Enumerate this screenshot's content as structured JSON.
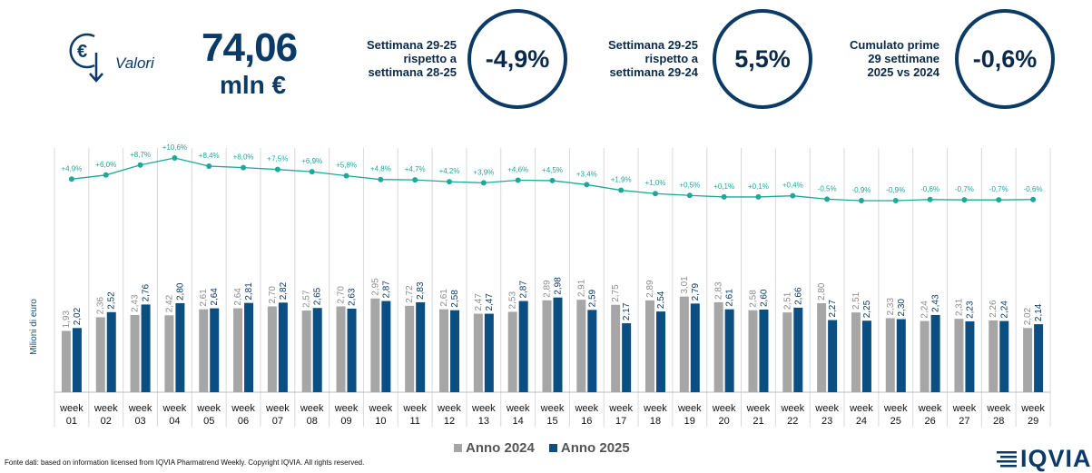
{
  "header": {
    "valori_label": "Valori",
    "total_value": "74,06",
    "total_unit": "mln €",
    "kpis": [
      {
        "label_lines": [
          "Settimana 29-25",
          "rispetto a",
          "settimana 28-25"
        ],
        "value": "-4,9%"
      },
      {
        "label_lines": [
          "Settimana 29-25",
          "rispetto a",
          "settimana 29-24"
        ],
        "value": "5,5%"
      },
      {
        "label_lines": [
          "Cumulato prime",
          "29 settimane",
          "2025 vs 2024"
        ],
        "value": "-0,6%"
      }
    ]
  },
  "colors": {
    "series_2024": "#a6a6a6",
    "series_2025": "#0b4f82",
    "growth_line": "#1aa99a",
    "accent_dark": "#0b3a66"
  },
  "chart_data": {
    "type": "bar",
    "ylabel": "Milioni di euro",
    "categories": [
      "week 01",
      "week 02",
      "week 03",
      "week 04",
      "week 05",
      "week 06",
      "week 07",
      "week 08",
      "week 09",
      "week 10",
      "week 11",
      "week 12",
      "week 13",
      "week 14",
      "week 15",
      "week 16",
      "week 17",
      "week 18",
      "week 19",
      "week 20",
      "week 21",
      "week 22",
      "week 23",
      "week 24",
      "week 25",
      "week 26",
      "week 27",
      "week 28",
      "week 29"
    ],
    "series": [
      {
        "name": "Anno 2024",
        "values": [
          1.93,
          2.36,
          2.43,
          2.42,
          2.61,
          2.64,
          2.7,
          2.57,
          2.7,
          2.95,
          2.72,
          2.61,
          2.47,
          2.53,
          2.89,
          2.91,
          2.75,
          2.89,
          3.01,
          2.83,
          2.58,
          2.51,
          2.8,
          2.51,
          2.33,
          2.24,
          2.31,
          2.26,
          2.02
        ],
        "labels": [
          "1,93",
          "2,36",
          "2,43",
          "2,42",
          "2,61",
          "2,64",
          "2,70",
          "2,57",
          "2,70",
          "2,95",
          "2,72",
          "2,61",
          "2,47",
          "2,53",
          "2,89",
          "2,91",
          "2,75",
          "2,89",
          "3,01",
          "2,83",
          "2,58",
          "2,51",
          "2,80",
          "2,51",
          "2,33",
          "2,24",
          "2,31",
          "2,26",
          "2,02"
        ]
      },
      {
        "name": "Anno 2025",
        "values": [
          2.02,
          2.52,
          2.76,
          2.8,
          2.64,
          2.81,
          2.82,
          2.65,
          2.63,
          2.87,
          2.83,
          2.58,
          2.47,
          2.87,
          2.98,
          2.59,
          2.17,
          2.54,
          2.79,
          2.61,
          2.6,
          2.66,
          2.27,
          2.25,
          2.3,
          2.43,
          2.23,
          2.24,
          2.14
        ],
        "labels": [
          "2,02",
          "2,52",
          "2,76",
          "2,80",
          "2,64",
          "2,81",
          "2,82",
          "2,65",
          "2,63",
          "2,87",
          "2,83",
          "2,58",
          "2,47",
          "2,87",
          "2,98",
          "2,59",
          "2,17",
          "2,54",
          "2,79",
          "2,61",
          "2,60",
          "2,66",
          "2,27",
          "2,25",
          "2,30",
          "2,43",
          "2,23",
          "2,24",
          "2,14"
        ]
      }
    ],
    "cumulative_growth": {
      "values": [
        4.9,
        6.0,
        8.7,
        10.6,
        8.4,
        8.0,
        7.5,
        6.9,
        5.8,
        4.8,
        4.7,
        4.2,
        3.9,
        4.6,
        4.5,
        3.4,
        1.9,
        1.0,
        0.5,
        0.1,
        0.1,
        0.4,
        -0.5,
        -0.9,
        -0.9,
        -0.6,
        -0.7,
        -0.7,
        -0.6
      ],
      "labels": [
        "+4,9%",
        "+6,0%",
        "+8,7%",
        "+10,6%",
        "+8,4%",
        "+8,0%",
        "+7,5%",
        "+6,9%",
        "+5,8%",
        "+4,8%",
        "+4,7%",
        "+4,2%",
        "+3,9%",
        "+4,6%",
        "+4,5%",
        "+3,4%",
        "+1,9%",
        "+1,0%",
        "+0,5%",
        "+0,1%",
        "+0,1%",
        "+0,4%",
        "-0,5%",
        "-0,9%",
        "-0,9%",
        "-0,6%",
        "-0,7%",
        "-0,7%",
        "-0,6%"
      ]
    }
  },
  "legend": {
    "items": [
      "Anno 2024",
      "Anno 2025"
    ]
  },
  "footer": {
    "source": "Fonte dati: based on information licensed from IQVIA Pharmatrend Weekly. Copyright IQVIA. All rights reserved.",
    "logo_text": "IQVIA"
  }
}
